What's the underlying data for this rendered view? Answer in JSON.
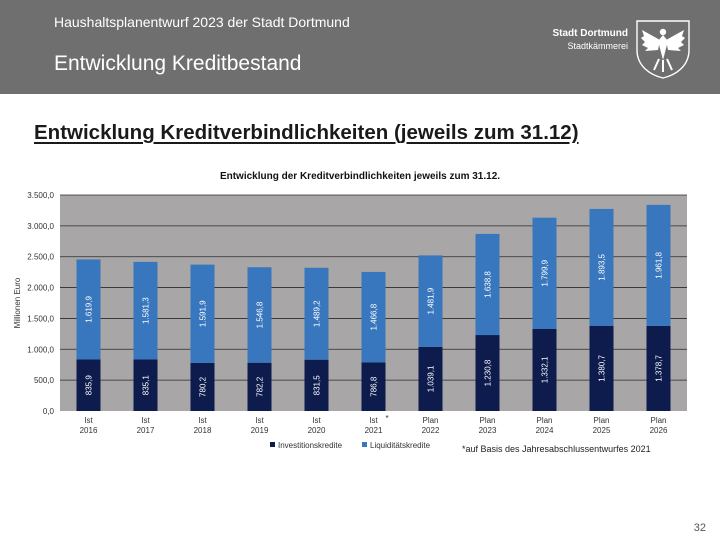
{
  "header": {
    "supertitle": "Haushaltsplanentwurf 2023 der Stadt Dortmund",
    "title": "Entwicklung Kreditbestand",
    "logo_line1": "Stadt Dortmund",
    "logo_line2": "Stadtkämmerei"
  },
  "heading": "Entwicklung Kreditverbindlichkeiten (jeweils zum 31.12)",
  "footnote": "*auf Basis des Jahresabschlussentwurfes 2021",
  "page_number": "32",
  "chart_data": {
    "type": "bar",
    "stacked": true,
    "title": "Entwicklung der Kreditverbindlichkeiten jeweils zum 31.12.",
    "ylabel": "Millionen Euro",
    "ylim": [
      0,
      3500
    ],
    "yticks": [
      0,
      500,
      1000,
      1500,
      2000,
      2500,
      3000,
      3500
    ],
    "ytick_labels": [
      "0,0",
      "500,0",
      "1.000,0",
      "1.500,0",
      "2.000,0",
      "2.500,0",
      "3.000,0",
      "3.500,0"
    ],
    "grid": true,
    "legend_position": "bottom",
    "categories": [
      [
        "Ist",
        "2016"
      ],
      [
        "Ist",
        "2017"
      ],
      [
        "Ist",
        "2018"
      ],
      [
        "Ist",
        "2019"
      ],
      [
        "Ist",
        "2020"
      ],
      [
        "Ist",
        "2021"
      ],
      [
        "Plan",
        "2022"
      ],
      [
        "Plan",
        "2023"
      ],
      [
        "Plan",
        "2024"
      ],
      [
        "Plan",
        "2025"
      ],
      [
        "Plan",
        "2026"
      ]
    ],
    "category_marks": [
      "",
      "",
      "",
      "",
      "",
      "*",
      "",
      "",
      "",
      "",
      ""
    ],
    "series": [
      {
        "name": "Investitionskredite",
        "color": "#0d1b4d",
        "values": [
          835.9,
          835.1,
          780.2,
          782.2,
          831.5,
          786.8,
          1039.1,
          1230.8,
          1332.1,
          1380.7,
          1378.7
        ],
        "labels": [
          "835,9",
          "835,1",
          "780,2",
          "782,2",
          "831,5",
          "786,8",
          "1.039,1",
          "1.230,8",
          "1.332,1",
          "1.380,7",
          "1.378,7"
        ]
      },
      {
        "name": "Liquiditätskredite",
        "color": "#3877bd",
        "values": [
          1619.9,
          1581.3,
          1591.9,
          1546.8,
          1489.2,
          1466.8,
          1481.9,
          1638.8,
          1799.9,
          1893.5,
          1961.8
        ],
        "labels": [
          "1.619,9",
          "1.581,3",
          "1.591,9",
          "1.546,8",
          "1.489,2",
          "1.466,8",
          "1.481,9",
          "1.638,8",
          "1.799,9",
          "1.893,5",
          "1.961,8"
        ]
      }
    ],
    "colors": {
      "plot_background": "#a8a6a6",
      "gridline": "#2b2b2b"
    }
  }
}
